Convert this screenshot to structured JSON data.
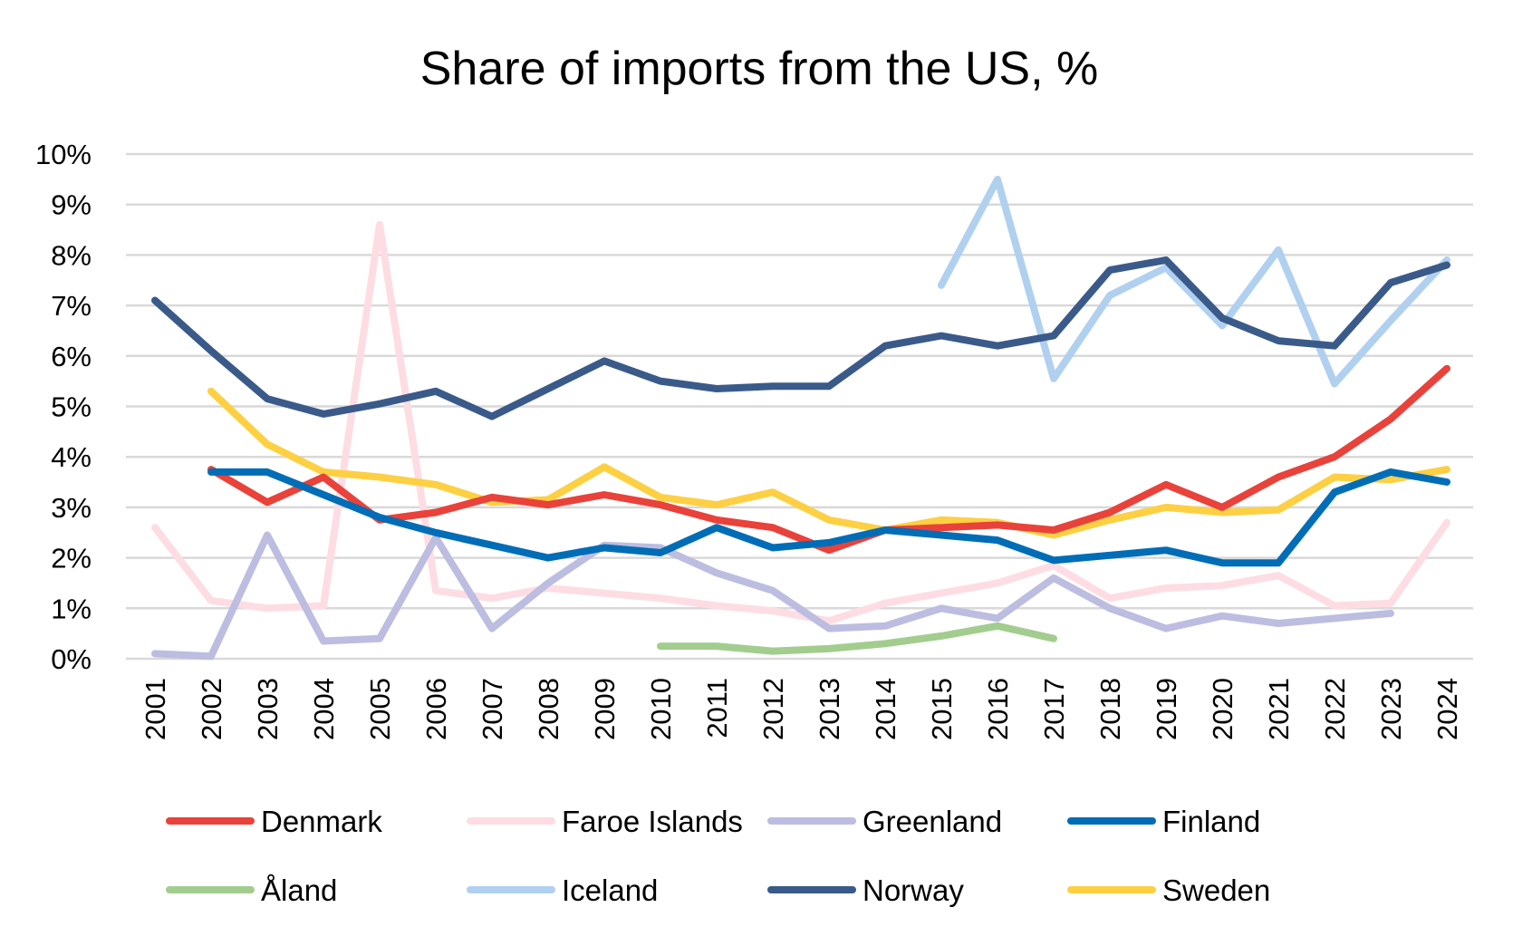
{
  "chart_data": {
    "type": "line",
    "title": "Share of imports from the US, %",
    "xlabel": "",
    "ylabel": "",
    "categories": [
      "2001",
      "2002",
      "2003",
      "2004",
      "2005",
      "2006",
      "2007",
      "2008",
      "2009",
      "2010",
      "2011",
      "2012",
      "2013",
      "2014",
      "2015",
      "2016",
      "2017",
      "2018",
      "2019",
      "2020",
      "2021",
      "2022",
      "2023",
      "2024"
    ],
    "ylim": [
      0,
      10
    ],
    "yticks": [
      "0%",
      "1%",
      "2%",
      "3%",
      "4%",
      "5%",
      "6%",
      "7%",
      "8%",
      "9%",
      "10%"
    ],
    "grid": true,
    "legend_position": "bottom",
    "series": [
      {
        "name": "Denmark",
        "color": "#E9423A",
        "values": [
          null,
          3.75,
          3.1,
          3.6,
          2.75,
          2.9,
          3.2,
          3.05,
          3.25,
          3.05,
          2.75,
          2.6,
          2.15,
          2.55,
          2.6,
          2.65,
          2.55,
          2.9,
          3.45,
          3.0,
          3.6,
          4.0,
          4.75,
          5.75
        ]
      },
      {
        "name": "Faroe Islands",
        "color": "#FDDDE3",
        "values": [
          2.6,
          1.15,
          1.0,
          1.05,
          8.6,
          1.35,
          1.2,
          1.4,
          1.3,
          1.2,
          1.05,
          0.95,
          0.75,
          1.1,
          1.3,
          1.5,
          1.85,
          1.2,
          1.4,
          1.45,
          1.65,
          1.05,
          1.1,
          2.7
        ]
      },
      {
        "name": "Greenland",
        "color": "#BCBDE0",
        "values": [
          0.1,
          0.05,
          2.45,
          0.35,
          0.4,
          2.4,
          0.6,
          1.5,
          2.25,
          2.2,
          1.7,
          1.35,
          0.6,
          0.65,
          1.0,
          0.8,
          1.6,
          1.0,
          0.6,
          0.85,
          0.7,
          0.8,
          0.9,
          null
        ]
      },
      {
        "name": "Finland",
        "color": "#006DB6",
        "values": [
          null,
          3.7,
          3.7,
          3.25,
          2.8,
          2.5,
          2.25,
          2.0,
          2.2,
          2.1,
          2.6,
          2.2,
          2.3,
          2.55,
          2.45,
          2.35,
          1.95,
          2.05,
          2.15,
          1.9,
          1.9,
          3.3,
          3.7,
          3.5
        ]
      },
      {
        "name": "Åland",
        "color": "#A2CD8E",
        "values": [
          null,
          null,
          null,
          null,
          null,
          null,
          null,
          null,
          null,
          0.25,
          0.25,
          0.15,
          0.2,
          0.3,
          0.45,
          0.65,
          0.4,
          null,
          null,
          null,
          null,
          null,
          null,
          null
        ]
      },
      {
        "name": "Iceland",
        "color": "#B0D0F0",
        "values": [
          null,
          null,
          null,
          null,
          null,
          null,
          null,
          null,
          null,
          null,
          null,
          null,
          null,
          null,
          7.4,
          9.5,
          5.55,
          7.2,
          7.75,
          6.6,
          8.1,
          5.45,
          6.7,
          7.9
        ]
      },
      {
        "name": "Norway",
        "color": "#3A5A8A",
        "values": [
          7.1,
          6.1,
          5.15,
          4.85,
          5.05,
          5.3,
          4.8,
          5.35,
          5.9,
          5.5,
          5.35,
          5.4,
          5.4,
          6.2,
          6.4,
          6.2,
          6.4,
          7.7,
          7.9,
          6.75,
          6.3,
          6.2,
          7.45,
          7.8
        ]
      },
      {
        "name": "Sweden",
        "color": "#FDD043",
        "values": [
          null,
          5.3,
          4.25,
          3.7,
          3.6,
          3.45,
          3.1,
          3.15,
          3.8,
          3.2,
          3.05,
          3.3,
          2.75,
          2.55,
          2.75,
          2.7,
          2.45,
          2.75,
          3.0,
          2.9,
          2.95,
          3.6,
          3.55,
          3.75
        ]
      }
    ]
  }
}
